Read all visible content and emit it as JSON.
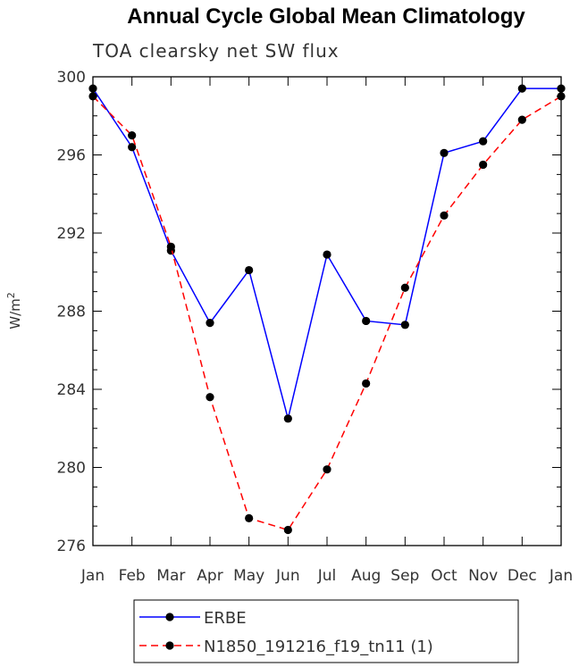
{
  "chart_data": {
    "type": "line",
    "title": "Annual Cycle Global Mean Climatology",
    "subtitle": "TOA clearsky net SW flux",
    "ylabel": "W/m",
    "ylabel_exponent": "2",
    "xlabel": "",
    "categories": [
      "Jan",
      "Feb",
      "Mar",
      "Apr",
      "May",
      "Jun",
      "Jul",
      "Aug",
      "Sep",
      "Oct",
      "Nov",
      "Dec",
      "Jan"
    ],
    "ylim": [
      276,
      300
    ],
    "yticks": [
      276,
      280,
      284,
      288,
      292,
      296,
      300
    ],
    "grid": false,
    "legend_position": "bottom",
    "series": [
      {
        "name": "ERBE",
        "color": "#0000ff",
        "dash": "solid",
        "values": [
          299.4,
          296.4,
          291.1,
          287.4,
          290.1,
          282.5,
          290.9,
          287.5,
          287.3,
          296.1,
          296.7,
          299.4,
          299.4
        ]
      },
      {
        "name": "N1850_191216_f19_tn11 (1)",
        "color": "#ff0000",
        "dash": "dashed",
        "values": [
          299.0,
          297.0,
          291.3,
          283.6,
          277.4,
          276.8,
          279.9,
          284.3,
          289.2,
          292.9,
          295.5,
          297.8,
          299.0
        ]
      }
    ]
  }
}
